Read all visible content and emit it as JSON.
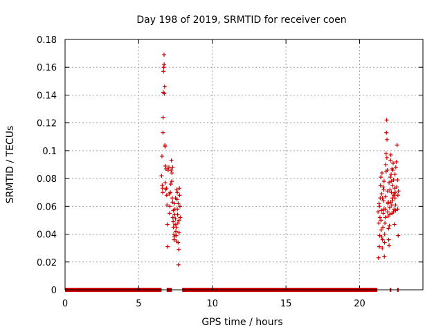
{
  "chart_data": {
    "type": "scatter",
    "title": "Day 198 of 2019, SRMTID for receiver coen",
    "xlabel": "GPS time / hours",
    "ylabel": "SRMTID / TECUs",
    "xlim": [
      0,
      24.3
    ],
    "ylim": [
      0,
      0.18
    ],
    "xticks": [
      0,
      5,
      10,
      15,
      20
    ],
    "yticks": [
      0,
      0.02,
      0.04,
      0.06,
      0.08,
      0.1,
      0.12,
      0.14,
      0.16,
      0.18
    ],
    "xtick_labels": [
      "0",
      "5",
      "10",
      "15",
      "20"
    ],
    "ytick_labels": [
      "0",
      "0.02",
      "0.04",
      "0.06",
      "0.08",
      "0.1",
      "0.12",
      "0.14",
      "0.16",
      "0.18"
    ],
    "grid": true,
    "marker": "+",
    "color": "#cc0000",
    "zero_segments": [
      [
        0.0,
        6.55
      ],
      [
        6.9,
        7.25
      ],
      [
        7.95,
        21.2
      ],
      [
        22.05,
        22.15
      ],
      [
        22.55,
        22.65
      ]
    ],
    "points": [
      [
        6.55,
        0.082
      ],
      [
        6.58,
        0.096
      ],
      [
        6.6,
        0.075
      ],
      [
        6.62,
        0.073
      ],
      [
        6.63,
        0.07
      ],
      [
        6.65,
        0.113
      ],
      [
        6.66,
        0.124
      ],
      [
        6.67,
        0.142
      ],
      [
        6.68,
        0.157
      ],
      [
        6.7,
        0.16
      ],
      [
        6.72,
        0.169
      ],
      [
        6.73,
        0.162
      ],
      [
        6.74,
        0.141
      ],
      [
        6.76,
        0.146
      ],
      [
        6.78,
        0.104
      ],
      [
        6.79,
        0.103
      ],
      [
        6.8,
        0.077
      ],
      [
        6.82,
        0.089
      ],
      [
        6.84,
        0.072
      ],
      [
        6.85,
        0.087
      ],
      [
        6.88,
        0.073
      ],
      [
        6.9,
        0.068
      ],
      [
        6.92,
        0.061
      ],
      [
        6.95,
        0.047
      ],
      [
        6.97,
        0.031
      ],
      [
        7.0,
        0.086
      ],
      [
        7.05,
        0.088
      ],
      [
        7.08,
        0.069
      ],
      [
        7.1,
        0.055
      ],
      [
        7.12,
        0.06
      ],
      [
        7.15,
        0.07
      ],
      [
        7.18,
        0.076
      ],
      [
        7.2,
        0.086
      ],
      [
        7.22,
        0.093
      ],
      [
        7.25,
        0.084
      ],
      [
        7.28,
        0.066
      ],
      [
        7.3,
        0.063
      ],
      [
        7.32,
        0.052
      ],
      [
        7.34,
        0.049
      ],
      [
        7.36,
        0.045
      ],
      [
        7.38,
        0.04
      ],
      [
        7.4,
        0.036
      ],
      [
        7.42,
        0.038
      ],
      [
        7.44,
        0.054
      ],
      [
        7.46,
        0.058
      ],
      [
        7.48,
        0.047
      ],
      [
        7.5,
        0.051
      ],
      [
        7.52,
        0.042
      ],
      [
        7.54,
        0.039
      ],
      [
        7.56,
        0.035
      ],
      [
        7.58,
        0.072
      ],
      [
        7.6,
        0.065
      ],
      [
        7.62,
        0.058
      ],
      [
        7.64,
        0.054
      ],
      [
        7.66,
        0.048
      ],
      [
        7.68,
        0.034
      ],
      [
        7.7,
        0.018
      ],
      [
        7.72,
        0.029
      ],
      [
        7.74,
        0.041
      ],
      [
        7.76,
        0.073
      ],
      [
        7.78,
        0.068
      ],
      [
        7.8,
        0.06
      ],
      [
        7.82,
        0.052
      ],
      [
        7.24,
        0.078
      ],
      [
        7.3,
        0.088
      ],
      [
        7.35,
        0.057
      ],
      [
        7.42,
        0.062
      ],
      [
        7.5,
        0.066
      ],
      [
        7.56,
        0.045
      ],
      [
        7.62,
        0.07
      ],
      [
        7.68,
        0.062
      ],
      [
        7.74,
        0.05
      ],
      [
        21.25,
        0.056
      ],
      [
        21.28,
        0.023
      ],
      [
        21.3,
        0.048
      ],
      [
        21.32,
        0.062
      ],
      [
        21.34,
        0.031
      ],
      [
        21.36,
        0.039
      ],
      [
        21.38,
        0.052
      ],
      [
        21.4,
        0.066
      ],
      [
        21.42,
        0.075
      ],
      [
        21.44,
        0.081
      ],
      [
        21.46,
        0.043
      ],
      [
        21.48,
        0.057
      ],
      [
        21.5,
        0.069
      ],
      [
        21.52,
        0.084
      ],
      [
        21.54,
        0.03
      ],
      [
        21.56,
        0.036
      ],
      [
        21.58,
        0.045
      ],
      [
        21.6,
        0.055
      ],
      [
        21.62,
        0.064
      ],
      [
        21.64,
        0.072
      ],
      [
        21.66,
        0.078
      ],
      [
        21.68,
        0.024
      ],
      [
        21.7,
        0.04
      ],
      [
        21.72,
        0.048
      ],
      [
        21.74,
        0.058
      ],
      [
        21.76,
        0.067
      ],
      [
        21.78,
        0.09
      ],
      [
        21.8,
        0.098
      ],
      [
        21.82,
        0.113
      ],
      [
        21.84,
        0.122
      ],
      [
        21.86,
        0.108
      ],
      [
        21.88,
        0.086
      ],
      [
        21.9,
        0.071
      ],
      [
        21.92,
        0.062
      ],
      [
        21.94,
        0.053
      ],
      [
        21.96,
        0.044
      ],
      [
        21.98,
        0.036
      ],
      [
        22.0,
        0.032
      ],
      [
        22.02,
        0.046
      ],
      [
        22.04,
        0.059
      ],
      [
        22.06,
        0.072
      ],
      [
        22.08,
        0.081
      ],
      [
        22.1,
        0.093
      ],
      [
        22.12,
        0.097
      ],
      [
        22.14,
        0.083
      ],
      [
        22.16,
        0.07
      ],
      [
        22.18,
        0.061
      ],
      [
        22.2,
        0.055
      ],
      [
        22.22,
        0.066
      ],
      [
        22.24,
        0.075
      ],
      [
        22.26,
        0.086
      ],
      [
        22.28,
        0.091
      ],
      [
        22.3,
        0.079
      ],
      [
        22.32,
        0.068
      ],
      [
        22.34,
        0.058
      ],
      [
        22.36,
        0.047
      ],
      [
        22.38,
        0.073
      ],
      [
        22.4,
        0.083
      ],
      [
        22.42,
        0.07
      ],
      [
        22.44,
        0.061
      ],
      [
        22.46,
        0.088
      ],
      [
        22.5,
        0.092
      ],
      [
        22.55,
        0.104
      ],
      [
        22.58,
        0.079
      ],
      [
        22.6,
        0.068
      ],
      [
        22.62,
        0.039
      ],
      [
        22.64,
        0.071
      ],
      [
        21.35,
        0.06
      ],
      [
        21.45,
        0.05
      ],
      [
        21.55,
        0.066
      ],
      [
        21.65,
        0.058
      ],
      [
        21.75,
        0.052
      ],
      [
        21.85,
        0.095
      ],
      [
        21.95,
        0.063
      ],
      [
        22.05,
        0.054
      ],
      [
        22.15,
        0.078
      ],
      [
        22.25,
        0.064
      ],
      [
        22.35,
        0.069
      ],
      [
        22.45,
        0.057
      ],
      [
        21.5,
        0.038
      ],
      [
        21.6,
        0.074
      ],
      [
        21.7,
        0.034
      ],
      [
        21.8,
        0.085
      ],
      [
        21.9,
        0.056
      ],
      [
        22.0,
        0.077
      ],
      [
        22.1,
        0.063
      ],
      [
        22.2,
        0.087
      ],
      [
        22.3,
        0.056
      ],
      [
        22.4,
        0.066
      ],
      [
        22.52,
        0.074
      ],
      [
        22.58,
        0.058
      ]
    ]
  }
}
